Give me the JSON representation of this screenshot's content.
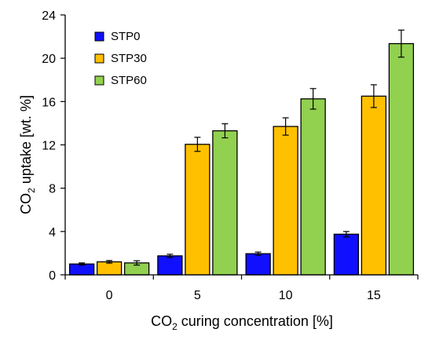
{
  "chart_data": {
    "type": "bar",
    "categories": [
      "0",
      "5",
      "10",
      "15"
    ],
    "series": [
      {
        "name": "STP0",
        "color": "#1010ff",
        "values": [
          1.0,
          1.75,
          1.95,
          3.75
        ],
        "errors": [
          0.1,
          0.15,
          0.15,
          0.25
        ]
      },
      {
        "name": "STP30",
        "color": "#ffc000",
        "values": [
          1.2,
          12.05,
          13.7,
          16.5
        ],
        "errors": [
          0.12,
          0.65,
          0.8,
          1.05
        ]
      },
      {
        "name": "STP60",
        "color": "#92d050",
        "values": [
          1.1,
          13.3,
          16.25,
          21.35
        ],
        "errors": [
          0.2,
          0.65,
          0.95,
          1.25
        ]
      }
    ],
    "x_title": {
      "prefix": "CO",
      "sub": "2",
      "suffix": " curing concentration [%]"
    },
    "y_title": {
      "prefix": "CO",
      "sub": "2",
      "suffix": " uptake [wt. %]"
    },
    "y_ticks": [
      0,
      4,
      8,
      12,
      16,
      20,
      24
    ],
    "ylim": [
      0,
      24
    ],
    "grid": false,
    "legend_position": "top-left",
    "error_bars": true
  }
}
